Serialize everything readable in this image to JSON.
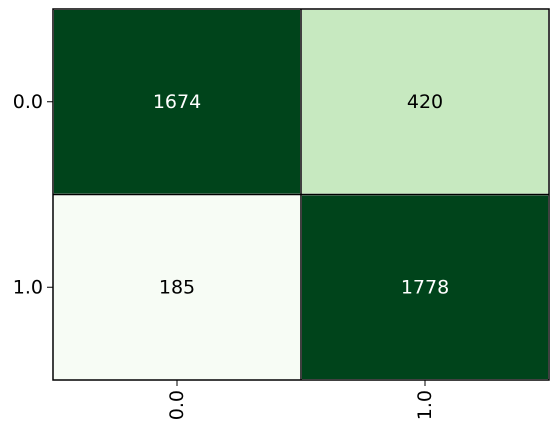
{
  "chart_data": {
    "type": "heatmap",
    "title": "",
    "xlabel": "",
    "ylabel": "",
    "x_ticks": [
      "0.0",
      "1.0"
    ],
    "y_ticks": [
      "0.0",
      "1.0"
    ],
    "values": [
      [
        1674,
        420
      ],
      [
        185,
        1778
      ]
    ],
    "cell_colors": [
      [
        "#00441b",
        "#c7e9c0"
      ],
      [
        "#f7fcf5",
        "#00441b"
      ]
    ],
    "text_colors": [
      [
        "#ffffff",
        "#000000"
      ],
      [
        "#000000",
        "#ffffff"
      ]
    ],
    "grid": false,
    "legend": "none"
  }
}
